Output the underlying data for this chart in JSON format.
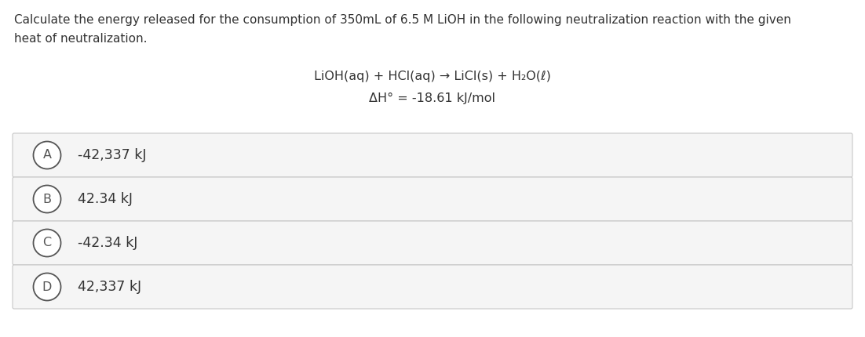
{
  "title_line1": "Calculate the energy released for the consumption of 350mL of 6.5 M LiOH in the following neutralization reaction with the given",
  "title_line2": "heat of neutralization.",
  "reaction_line1": "LiOH(aq) + HCl(aq) → LiCl(s) + H₂O(ℓ)",
  "reaction_line2": "ΔH° = -18.61 kJ/mol",
  "options": [
    {
      "label": "A",
      "text": "-42,337 kJ"
    },
    {
      "label": "B",
      "text": "42.34 kJ"
    },
    {
      "label": "C",
      "text": "-42.34 kJ"
    },
    {
      "label": "D",
      "text": "42,337 kJ"
    }
  ],
  "bg_color": "#ffffff",
  "option_bg_color": "#f5f5f5",
  "option_border_color": "#c8c8c8",
  "text_color": "#333333",
  "circle_edge_color": "#555555",
  "title_fontsize": 11.0,
  "reaction_fontsize": 11.5,
  "option_fontsize": 12.5,
  "label_fontsize": 11.5,
  "fig_width": 11.02,
  "fig_height": 4.3,
  "dpi": 100
}
